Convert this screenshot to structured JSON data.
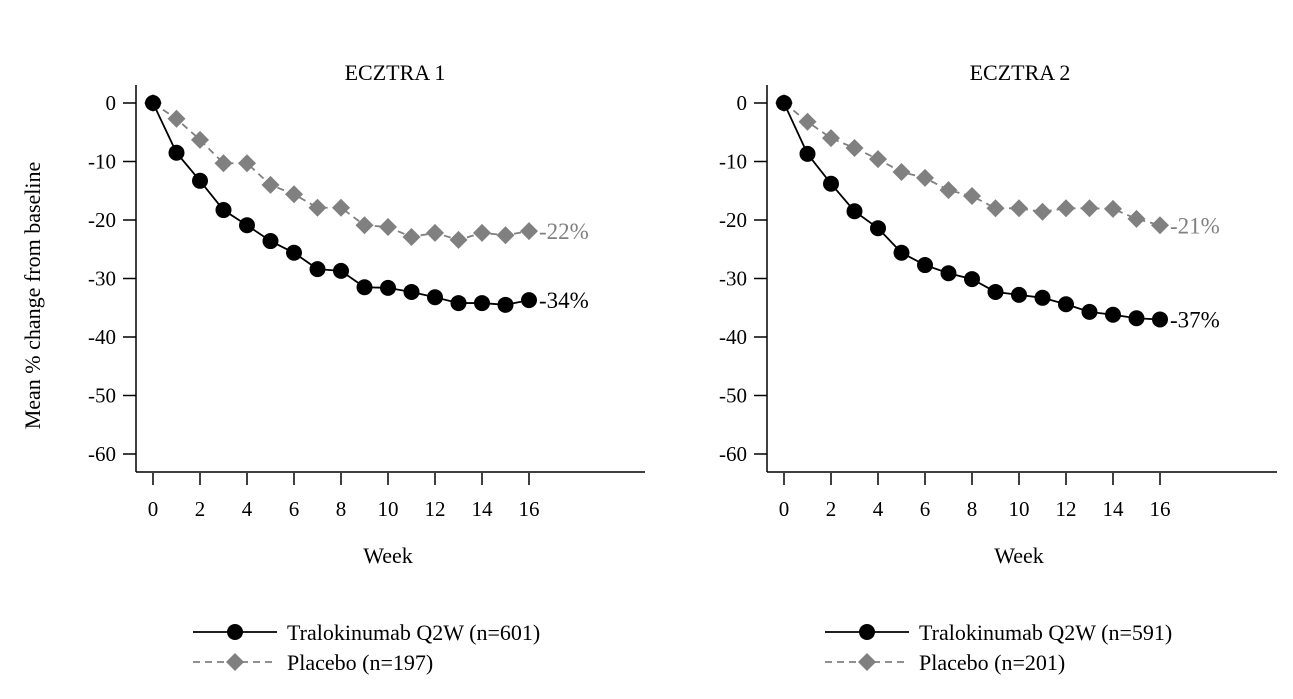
{
  "chart_data": [
    {
      "type": "line",
      "title": "ECZTRA 1",
      "xlabel": "Week",
      "ylabel": "Mean % change from baseline",
      "xlim": [
        0,
        21
      ],
      "ylim": [
        -63,
        3
      ],
      "x_ticks": [
        0,
        2,
        4,
        6,
        8,
        10,
        12,
        14,
        16
      ],
      "y_ticks": [
        0,
        -10,
        -20,
        -30,
        -40,
        -50,
        -60
      ],
      "grid": false,
      "legend_position": "bottom",
      "x": [
        0,
        1,
        2,
        3,
        4,
        5,
        6,
        7,
        8,
        9,
        10,
        11,
        12,
        13,
        14,
        15,
        16
      ],
      "series": [
        {
          "name": "Tralokinumab Q2W (n=601)",
          "color": "#000000",
          "marker": "circle",
          "line": "solid",
          "values": [
            0,
            -8.5,
            -13.3,
            -18.3,
            -20.9,
            -23.6,
            -25.6,
            -28.4,
            -28.7,
            -31.5,
            -31.6,
            -32.3,
            -33.2,
            -34.2,
            -34.2,
            -34.5,
            -33.7
          ],
          "end_label": "-34%"
        },
        {
          "name": "Placebo (n=197)",
          "color": "#808080",
          "marker": "diamond",
          "line": "dashed",
          "values": [
            0,
            -2.7,
            -6.3,
            -10.3,
            -10.3,
            -14.0,
            -15.6,
            -17.9,
            -17.9,
            -20.9,
            -21.2,
            -22.9,
            -22.2,
            -23.4,
            -22.2,
            -22.6,
            -21.9
          ],
          "end_label": "-22%"
        }
      ]
    },
    {
      "type": "line",
      "title": "ECZTRA 2",
      "xlabel": "Week",
      "ylabel": "",
      "xlim": [
        0,
        21
      ],
      "ylim": [
        -63,
        3
      ],
      "x_ticks": [
        0,
        2,
        4,
        6,
        8,
        10,
        12,
        14,
        16
      ],
      "y_ticks": [
        0,
        -10,
        -20,
        -30,
        -40,
        -50,
        -60
      ],
      "grid": false,
      "legend_position": "bottom",
      "x": [
        0,
        1,
        2,
        3,
        4,
        5,
        6,
        7,
        8,
        9,
        10,
        11,
        12,
        13,
        14,
        15,
        16
      ],
      "series": [
        {
          "name": "Tralokinumab Q2W (n=591)",
          "color": "#000000",
          "marker": "circle",
          "line": "solid",
          "values": [
            0,
            -8.7,
            -13.8,
            -18.5,
            -21.4,
            -25.6,
            -27.7,
            -29.1,
            -30.1,
            -32.3,
            -32.8,
            -33.3,
            -34.4,
            -35.7,
            -36.2,
            -36.8,
            -37.0
          ],
          "end_label": "-37%"
        },
        {
          "name": "Placebo (n=201)",
          "color": "#808080",
          "marker": "diamond",
          "line": "dashed",
          "values": [
            0,
            -3.2,
            -6.0,
            -7.7,
            -9.6,
            -11.8,
            -12.8,
            -14.9,
            -15.9,
            -18.0,
            -18.0,
            -18.6,
            -18.0,
            -18.0,
            -18.1,
            -19.8,
            -20.9
          ],
          "end_label": "-21%"
        }
      ]
    }
  ]
}
